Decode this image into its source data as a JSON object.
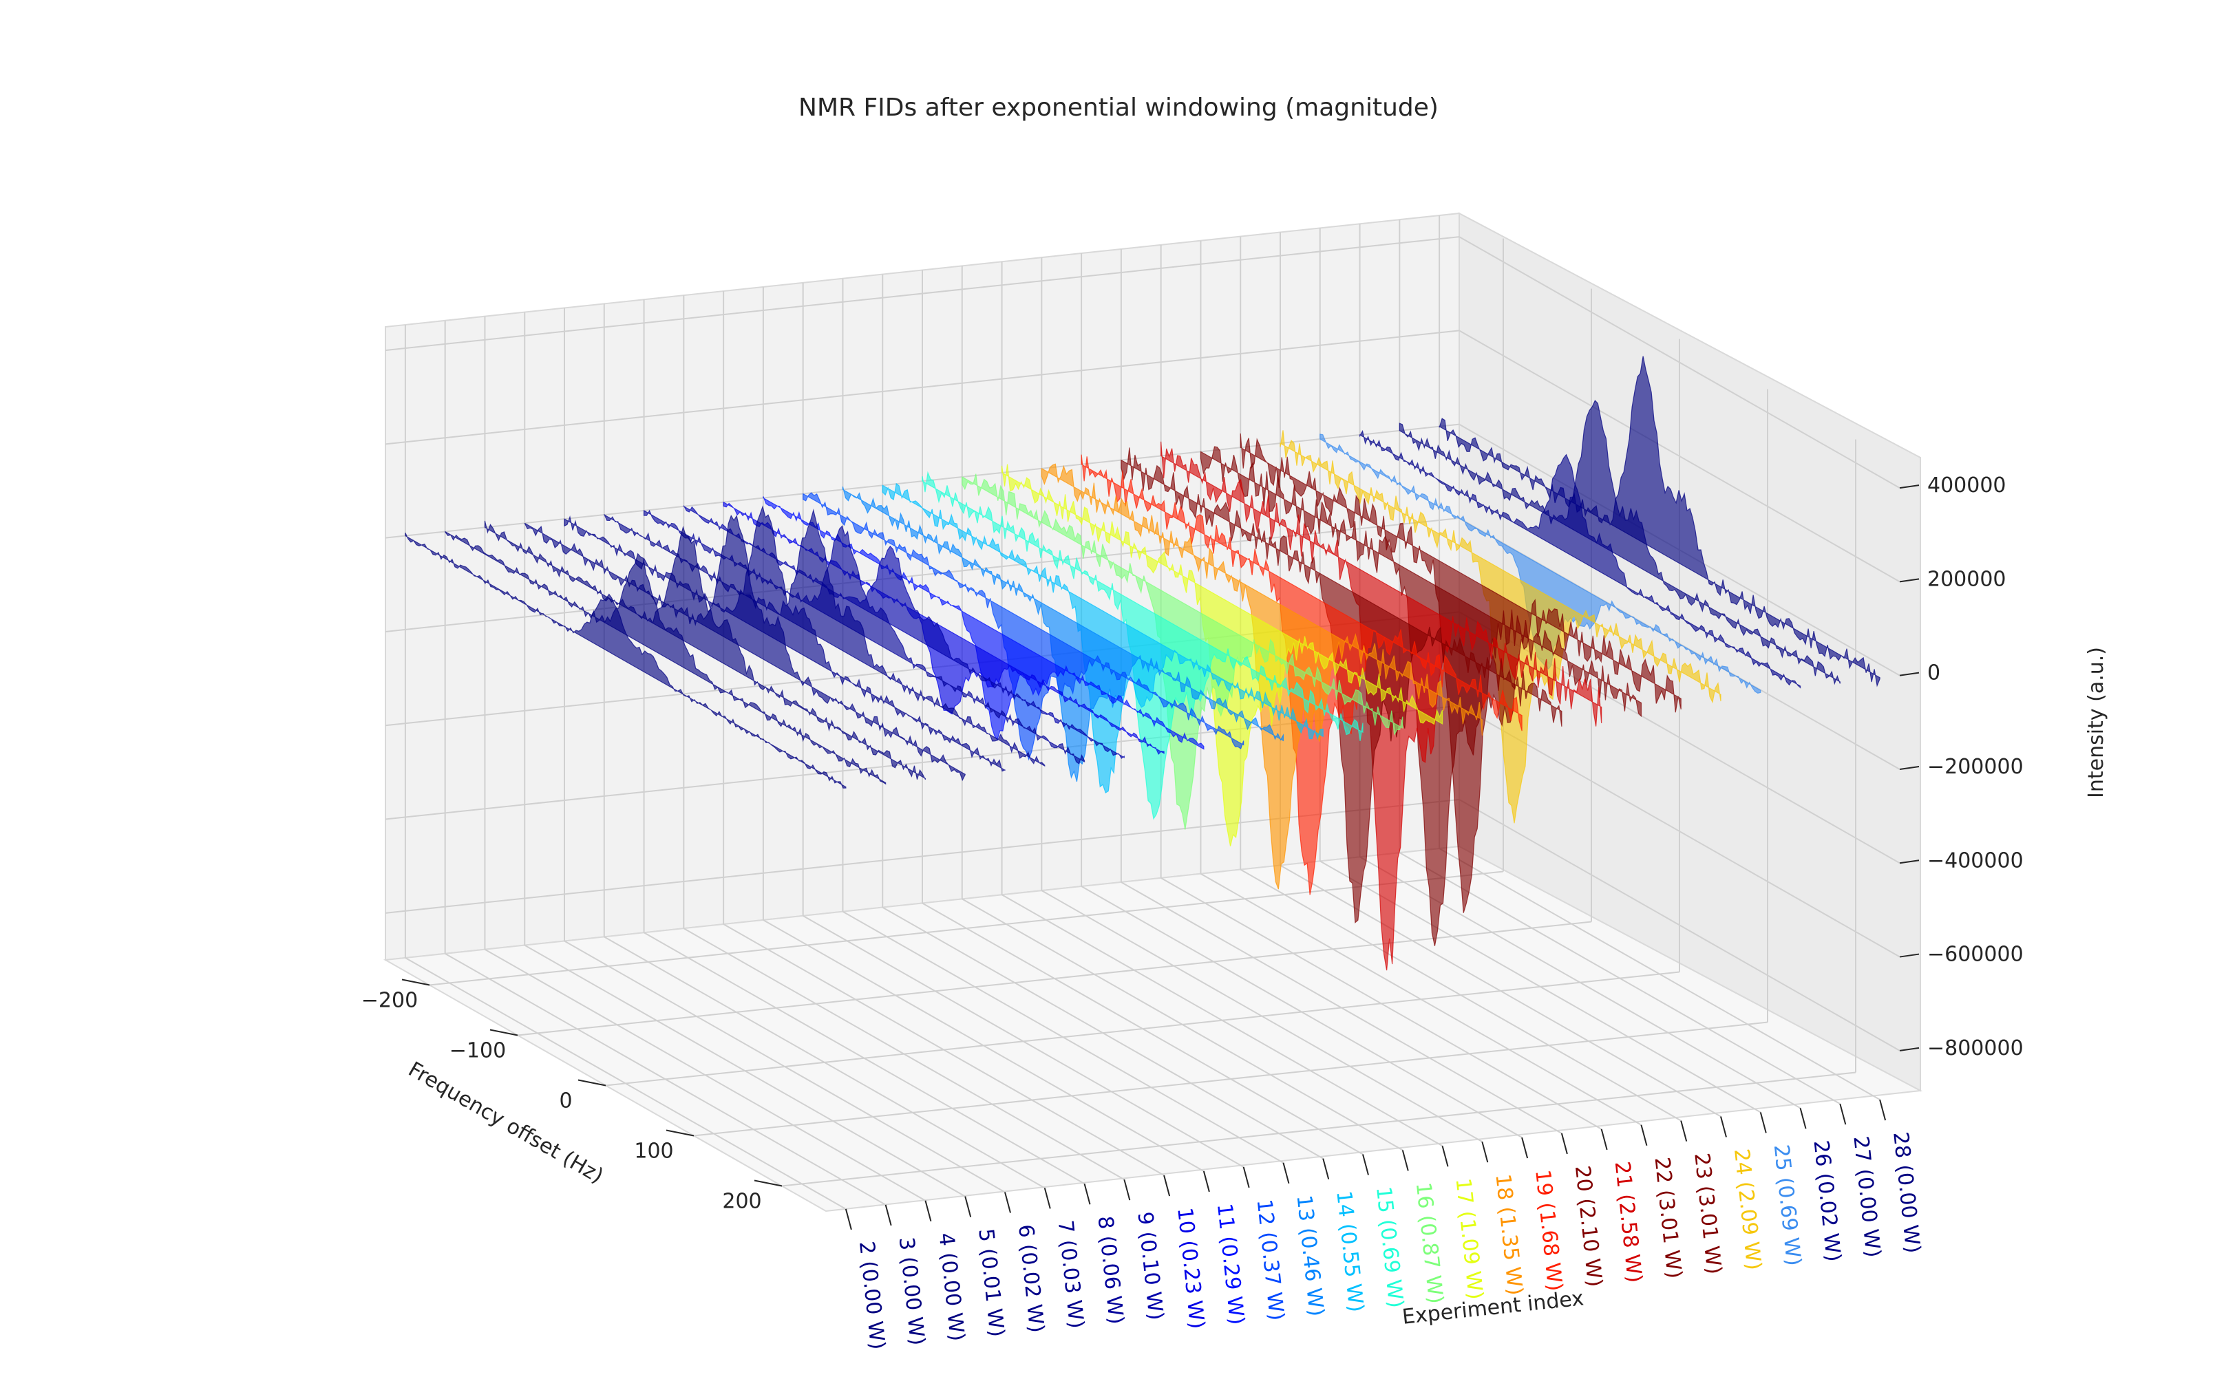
{
  "chart_data": {
    "type": "area",
    "title": "NMR FIDs after exponential windowing (magnitude)",
    "xlabel": "Frequency offset (Hz)",
    "ylabel": "Experiment index",
    "zlabel": "Intensity (a.u.)",
    "xlim": [
      -250,
      250
    ],
    "zlim": [
      -900000,
      450000
    ],
    "xticks": [
      "−200",
      "−100",
      "0",
      "100",
      "200"
    ],
    "xtick_values": [
      -200,
      -100,
      0,
      100,
      200
    ],
    "zticks": [
      "400000",
      "200000",
      "0",
      "−200000",
      "−400000",
      "−600000",
      "−800000"
    ],
    "ztick_values": [
      400000,
      200000,
      0,
      -200000,
      -400000,
      -600000,
      -800000
    ],
    "grid": true,
    "colormap": "jet",
    "series": [
      {
        "name": "2 (0.00 W)",
        "index": 2,
        "power_w": 0.0,
        "peak": 120000,
        "color": "#000080"
      },
      {
        "name": "3 (0.00 W)",
        "index": 3,
        "power_w": 0.0,
        "peak": 180000,
        "color": "#000080"
      },
      {
        "name": "4 (0.00 W)",
        "index": 4,
        "power_w": 0.0,
        "peak": 240000,
        "color": "#000080"
      },
      {
        "name": "5 (0.01 W)",
        "index": 5,
        "power_w": 0.01,
        "peak": 270000,
        "color": "#000084"
      },
      {
        "name": "6 (0.02 W)",
        "index": 6,
        "power_w": 0.02,
        "peak": 260000,
        "color": "#000089"
      },
      {
        "name": "7 (0.03 W)",
        "index": 7,
        "power_w": 0.03,
        "peak": 250000,
        "color": "#00008d"
      },
      {
        "name": "8 (0.06 W)",
        "index": 8,
        "power_w": 0.06,
        "peak": 200000,
        "color": "#00009a"
      },
      {
        "name": "9 (0.10 W)",
        "index": 9,
        "power_w": 0.1,
        "peak": 160000,
        "color": "#0000ab"
      },
      {
        "name": "10 (0.23 W)",
        "index": 10,
        "power_w": 0.23,
        "peak": -180000,
        "color": "#0000e8"
      },
      {
        "name": "11 (0.29 W)",
        "index": 11,
        "power_w": 0.29,
        "peak": -220000,
        "color": "#0010ff"
      },
      {
        "name": "12 (0.37 W)",
        "index": 12,
        "power_w": 0.37,
        "peak": -280000,
        "color": "#0048ff"
      },
      {
        "name": "13 (0.46 W)",
        "index": 13,
        "power_w": 0.46,
        "peak": -330000,
        "color": "#0084ff"
      },
      {
        "name": "14 (0.55 W)",
        "index": 14,
        "power_w": 0.55,
        "peak": -380000,
        "color": "#00c0ff"
      },
      {
        "name": "15 (0.69 W)",
        "index": 15,
        "power_w": 0.69,
        "peak": -430000,
        "color": "#20ffd7"
      },
      {
        "name": "16 (0.87 W)",
        "index": 16,
        "power_w": 0.87,
        "peak": -470000,
        "color": "#7dff7a"
      },
      {
        "name": "17 (1.09 W)",
        "index": 17,
        "power_w": 1.09,
        "peak": -520000,
        "color": "#e4ff13"
      },
      {
        "name": "18 (1.35 W)",
        "index": 18,
        "power_w": 1.35,
        "peak": -580000,
        "color": "#ff9400"
      },
      {
        "name": "19 (1.68 W)",
        "index": 19,
        "power_w": 1.68,
        "peak": -620000,
        "color": "#ff1e00"
      },
      {
        "name": "20 (2.10 W)",
        "index": 20,
        "power_w": 2.1,
        "peak": -680000,
        "color": "#800000"
      },
      {
        "name": "21 (2.58 W)",
        "index": 21,
        "power_w": 2.58,
        "peak": -800000,
        "color": "#d40000"
      },
      {
        "name": "22 (3.01 W)",
        "index": 22,
        "power_w": 3.01,
        "peak": -750000,
        "color": "#800000"
      },
      {
        "name": "23 (3.01 W)",
        "index": 23,
        "power_w": 3.01,
        "peak": -700000,
        "color": "#800000"
      },
      {
        "name": "24 (2.09 W)",
        "index": 24,
        "power_w": 2.09,
        "peak": -520000,
        "color": "#f6c70c"
      },
      {
        "name": "25 (0.69 W)",
        "index": 25,
        "power_w": 0.69,
        "peak": -220000,
        "color": "#3b8df0"
      },
      {
        "name": "26 (0.02 W)",
        "index": 26,
        "power_w": 0.02,
        "peak": 200000,
        "color": "#000089"
      },
      {
        "name": "27 (0.00 W)",
        "index": 27,
        "power_w": 0.0,
        "peak": 300000,
        "color": "#000080"
      },
      {
        "name": "28 (0.00 W)",
        "index": 28,
        "power_w": 0.0,
        "peak": 380000,
        "color": "#000080"
      }
    ]
  }
}
